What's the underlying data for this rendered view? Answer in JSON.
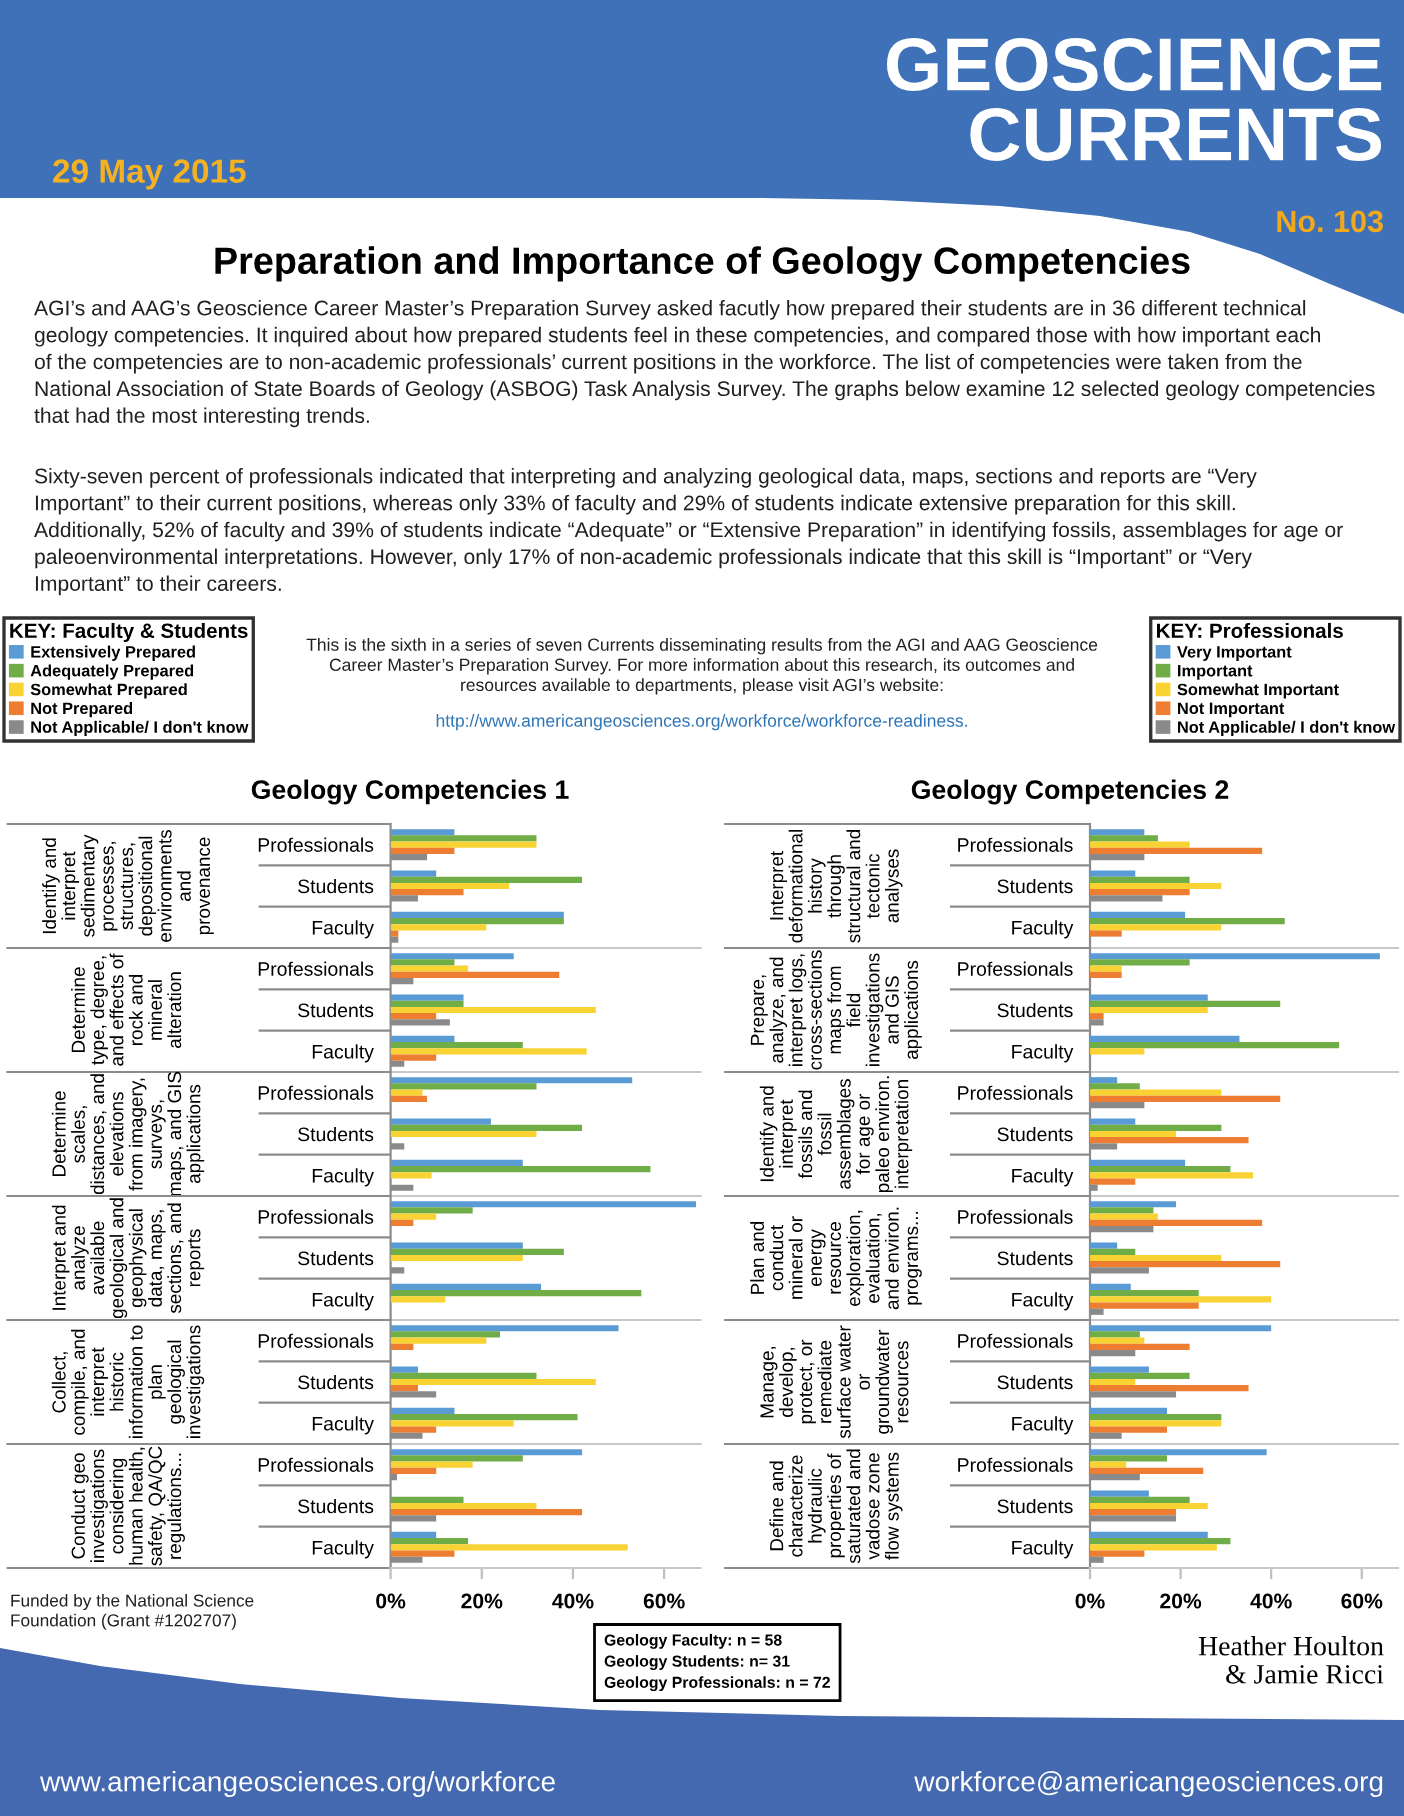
{
  "chart_data": [
    {
      "type": "other",
      "title": "Preparation and Importance of Geology Competencies",
      "annotations": [
        "GEOSCIENCE\nCURRENTS",
        "29 May 2015",
        "No. 103",
        "AGI’s and AAG’s Geoscience Career Master’s Preparation Survey asked facutly how prepared their students are in 36 different technical\ngeology competencies. It inquired about how prepared students feel in these competencies, and compared those with how important each\nof the competencies are to non-academic professionals’ current positions in the workforce. The list of competencies were taken from the\nNational Association of State Boards of Geology (ASBOG) Task Analysis Survey. The graphs below examine 12 selected geology competencies\nthat had the most interesting trends.",
        "Sixty-seven percent of professionals indicated that interpreting and analyzing geological data, maps, sections and reports are “Very\nImportant” to their current positions, whereas only 33% of faculty and 29% of students indicate extensive preparation for this skill.\nAdditionally, 52% of faculty and 39% of students indicate “Adequate” or “Extensive Preparation” in identifying fossils, assemblages for age or\npaleoenvironmental interpretations. However, only 17% of non-academic professionals indicate that this skill is “Important” or “Very\nImportant” to their careers.",
        "This is the sixth in a series of seven Currents disseminating results from the AGI and AAG Geoscience\nCareer Master’s Preparation Survey. For more information about this research, its outcomes and\nresources available to departments, please visit AGI’s website:",
        "http://www.americangeosciences.org/workforce/workforce-readiness.",
        "Funded by the National Science\nFoundation (Grant #1202707)",
        "Geology Faculty: n = 58\nGeology Students: n= 31\nGeology Professionals: n = 72",
        "Heather Houlton\n& Jamie Ricci",
        "www.americangeosciences.org/workforce",
        "workforce@americangeosciences.org"
      ]
    },
    {
      "type": "bar",
      "orientation": "horizontal",
      "title": "Geology Competencies 1",
      "ylabel": "Identify and\ninterpret\nsedimentary\nprocesses,\nstructures,\ndepositional\nenvironments\nand\nprovenance",
      "categories": [
        "Professionals",
        "Students",
        "Faculty"
      ],
      "series": [
        {
          "name": "Extensively Prepared",
          "color": "#5b9bd5",
          "values": [
            null,
            10,
            38
          ]
        },
        {
          "name": "Adequately Prepared",
          "color": "#70ad47",
          "values": [
            null,
            42,
            38
          ]
        },
        {
          "name": "Somewhat Prepared",
          "color": "#f9d233",
          "values": [
            null,
            26,
            21
          ]
        },
        {
          "name": "Not Prepared",
          "color": "#ed7d31",
          "values": [
            null,
            16,
            1.7
          ]
        },
        {
          "name": "Not Applicable/ I don't know",
          "color": "#8a8a8a",
          "values": [
            null,
            6,
            1.7
          ]
        },
        {
          "color": "#5b9bd5",
          "values": [
            14,
            null,
            null
          ]
        },
        {
          "color": "#70ad47",
          "values": [
            32,
            null,
            null
          ]
        },
        {
          "color": "#f9d233",
          "values": [
            32,
            null,
            null
          ]
        },
        {
          "color": "#ed7d31",
          "values": [
            14,
            null,
            null
          ]
        },
        {
          "color": "#8a8a8a",
          "values": [
            8,
            null,
            null
          ]
        }
      ],
      "xlim": [
        0,
        68
      ],
      "tick_labels": "y",
      "legend": "top left",
      "legend_title": "KEY: Faculty & Students"
    },
    {
      "type": "bar",
      "orientation": "horizontal",
      "ylabel": "Determine\ntype, degree,\nand effects of\nrock and\nmineral\nalteration",
      "categories": [
        "Professionals",
        "Students",
        "Faculty"
      ],
      "series": [
        {
          "color": "#5b9bd5",
          "values": [
            null,
            16,
            14
          ]
        },
        {
          "color": "#70ad47",
          "values": [
            null,
            16,
            29
          ]
        },
        {
          "color": "#f9d233",
          "values": [
            null,
            45,
            43
          ]
        },
        {
          "color": "#ed7d31",
          "values": [
            null,
            10,
            10
          ]
        },
        {
          "color": "#8a8a8a",
          "values": [
            null,
            13,
            3
          ]
        },
        {
          "color": "#5b9bd5",
          "values": [
            27,
            null,
            null
          ]
        },
        {
          "color": "#70ad47",
          "values": [
            14,
            null,
            null
          ]
        },
        {
          "color": "#f9d233",
          "values": [
            17,
            null,
            null
          ]
        },
        {
          "color": "#ed7d31",
          "values": [
            37,
            null,
            null
          ]
        },
        {
          "color": "#8a8a8a",
          "values": [
            5,
            null,
            null
          ]
        }
      ],
      "xlim": [
        0,
        68
      ],
      "tick_labels": "y"
    },
    {
      "type": "bar",
      "orientation": "horizontal",
      "ylabel": "Determine\nscales,\ndistances, and\nelevations\nfrom imagery,\nsurveys,\nmaps, and GIS\napplications",
      "categories": [
        "Professionals",
        "Students",
        "Faculty"
      ],
      "series": [
        {
          "color": "#5b9bd5",
          "values": [
            null,
            22,
            29
          ]
        },
        {
          "color": "#70ad47",
          "values": [
            null,
            42,
            57
          ]
        },
        {
          "color": "#f9d233",
          "values": [
            null,
            32,
            9
          ]
        },
        {
          "color": "#ed7d31",
          "values": [
            null,
            0,
            0
          ]
        },
        {
          "color": "#8a8a8a",
          "values": [
            null,
            3,
            5
          ]
        },
        {
          "color": "#5b9bd5",
          "values": [
            53,
            null,
            null
          ]
        },
        {
          "color": "#70ad47",
          "values": [
            32,
            null,
            null
          ]
        },
        {
          "color": "#f9d233",
          "values": [
            7,
            null,
            null
          ]
        },
        {
          "color": "#ed7d31",
          "values": [
            8,
            null,
            null
          ]
        },
        {
          "color": "#8a8a8a",
          "values": [
            0,
            null,
            null
          ]
        }
      ],
      "xlim": [
        0,
        68
      ],
      "tick_labels": "y"
    },
    {
      "type": "bar",
      "orientation": "horizontal",
      "ylabel": "Interpret and\nanalyze\navailable\ngeological and\ngeophysical\ndata, maps,\nsections, and\nreports",
      "categories": [
        "Professionals",
        "Students",
        "Faculty"
      ],
      "series": [
        {
          "color": "#5b9bd5",
          "values": [
            null,
            29,
            33
          ]
        },
        {
          "color": "#70ad47",
          "values": [
            null,
            38,
            55
          ]
        },
        {
          "color": "#f9d233",
          "values": [
            null,
            29,
            12
          ]
        },
        {
          "color": "#ed7d31",
          "values": [
            null,
            0,
            0
          ]
        },
        {
          "color": "#8a8a8a",
          "values": [
            null,
            3,
            0
          ]
        },
        {
          "color": "#5b9bd5",
          "values": [
            67,
            null,
            null
          ]
        },
        {
          "color": "#70ad47",
          "values": [
            18,
            null,
            null
          ]
        },
        {
          "color": "#f9d233",
          "values": [
            10,
            null,
            null
          ]
        },
        {
          "color": "#ed7d31",
          "values": [
            5,
            null,
            null
          ]
        },
        {
          "color": "#8a8a8a",
          "values": [
            0,
            null,
            null
          ]
        }
      ],
      "xlim": [
        0,
        68
      ],
      "tick_labels": "y"
    },
    {
      "type": "bar",
      "orientation": "horizontal",
      "ylabel": "Collect,\ncompile, and\ninterpret\nhistoric\ninformation to\nplan\ngeological\ninvestigations",
      "categories": [
        "Professionals",
        "Students",
        "Faculty"
      ],
      "series": [
        {
          "color": "#5b9bd5",
          "values": [
            null,
            6,
            14
          ]
        },
        {
          "color": "#70ad47",
          "values": [
            null,
            32,
            41
          ]
        },
        {
          "color": "#f9d233",
          "values": [
            null,
            45,
            27
          ]
        },
        {
          "color": "#ed7d31",
          "values": [
            null,
            6,
            10
          ]
        },
        {
          "color": "#8a8a8a",
          "values": [
            null,
            10,
            7
          ]
        },
        {
          "color": "#5b9bd5",
          "values": [
            50,
            null,
            null
          ]
        },
        {
          "color": "#70ad47",
          "values": [
            24,
            null,
            null
          ]
        },
        {
          "color": "#f9d233",
          "values": [
            21,
            null,
            null
          ]
        },
        {
          "color": "#ed7d31",
          "values": [
            5,
            null,
            null
          ]
        },
        {
          "color": "#8a8a8a",
          "values": [
            0,
            null,
            null
          ]
        }
      ],
      "xlim": [
        0,
        68
      ],
      "tick_labels": "y"
    },
    {
      "type": "bar",
      "orientation": "horizontal",
      "ylabel": "Conduct geo\ninvestigations\nconsidering\nhuman health,\nsafety, QA/QC\nregulations...",
      "categories": [
        "Professionals",
        "Students",
        "Faculty"
      ],
      "series": [
        {
          "color": "#5b9bd5",
          "values": [
            null,
            0,
            10
          ]
        },
        {
          "color": "#70ad47",
          "values": [
            null,
            16,
            17
          ]
        },
        {
          "color": "#f9d233",
          "values": [
            null,
            32,
            52
          ]
        },
        {
          "color": "#ed7d31",
          "values": [
            null,
            42,
            14
          ]
        },
        {
          "color": "#8a8a8a",
          "values": [
            null,
            10,
            7
          ]
        },
        {
          "color": "#5b9bd5",
          "values": [
            42,
            null,
            null
          ]
        },
        {
          "color": "#70ad47",
          "values": [
            29,
            null,
            null
          ]
        },
        {
          "color": "#f9d233",
          "values": [
            18,
            null,
            null
          ]
        },
        {
          "color": "#ed7d31",
          "values": [
            10,
            null,
            null
          ]
        },
        {
          "color": "#8a8a8a",
          "values": [
            1.4,
            null,
            null
          ]
        }
      ],
      "xlim": [
        0,
        68
      ],
      "xticks": [
        {
          "value": 0,
          "label": "0%"
        },
        {
          "value": 20,
          "label": "20%"
        },
        {
          "value": 40,
          "label": "40%"
        },
        {
          "value": 60,
          "label": "60%"
        }
      ]
    },
    {
      "type": "bar",
      "orientation": "horizontal",
      "title": "Geology Competencies 2",
      "ylabel": "Interpret\ndeformational\nhistory\nthrough\nstructural and\ntectonic\nanalyses",
      "categories": [
        "Professionals",
        "Students",
        "Faculty"
      ],
      "series": [
        {
          "color": "#5b9bd5",
          "values": [
            null,
            10,
            21
          ]
        },
        {
          "color": "#70ad47",
          "values": [
            null,
            22,
            43
          ]
        },
        {
          "color": "#f9d233",
          "values": [
            null,
            29,
            29
          ]
        },
        {
          "color": "#ed7d31",
          "values": [
            null,
            22,
            7
          ]
        },
        {
          "color": "#8a8a8a",
          "values": [
            null,
            16,
            0
          ]
        },
        {
          "name": "Very Important",
          "color": "#5b9bd5",
          "values": [
            12,
            null,
            null
          ]
        },
        {
          "name": "Important",
          "color": "#70ad47",
          "values": [
            15,
            null,
            null
          ]
        },
        {
          "name": "Somewhat Important",
          "color": "#f9d233",
          "values": [
            22,
            null,
            null
          ]
        },
        {
          "name": "Not Important",
          "color": "#ed7d31",
          "values": [
            38,
            null,
            null
          ]
        },
        {
          "name": "Not Applicable/ I don't know",
          "color": "#8a8a8a",
          "values": [
            12,
            null,
            null
          ]
        }
      ],
      "xlim": [
        0,
        68
      ],
      "tick_labels": "y",
      "legend": "top right",
      "legend_title": "KEY: Professionals"
    },
    {
      "type": "bar",
      "orientation": "horizontal",
      "ylabel": "Prepare,\nanalyze, and\ninterpret logs,\ncross-sections\nmaps from\nfield\ninvestigations\nand GIS\napplications",
      "categories": [
        "Professionals",
        "Students",
        "Faculty"
      ],
      "series": [
        {
          "color": "#5b9bd5",
          "values": [
            null,
            26,
            33
          ]
        },
        {
          "color": "#70ad47",
          "values": [
            null,
            42,
            55
          ]
        },
        {
          "color": "#f9d233",
          "values": [
            null,
            26,
            12
          ]
        },
        {
          "color": "#ed7d31",
          "values": [
            null,
            3,
            0
          ]
        },
        {
          "color": "#8a8a8a",
          "values": [
            null,
            3,
            0
          ]
        },
        {
          "color": "#5b9bd5",
          "values": [
            64,
            null,
            null
          ]
        },
        {
          "color": "#70ad47",
          "values": [
            22,
            null,
            null
          ]
        },
        {
          "color": "#f9d233",
          "values": [
            7,
            null,
            null
          ]
        },
        {
          "color": "#ed7d31",
          "values": [
            7,
            null,
            null
          ]
        },
        {
          "color": "#8a8a8a",
          "values": [
            0,
            null,
            null
          ]
        }
      ],
      "xlim": [
        0,
        68
      ],
      "tick_labels": "y"
    },
    {
      "type": "bar",
      "orientation": "horizontal",
      "ylabel": "Identify and\ninterpret\nfossils and\nfossil\nassemblages\nfor age or\npaleo environ.\ninterpretation",
      "categories": [
        "Professionals",
        "Students",
        "Faculty"
      ],
      "series": [
        {
          "color": "#5b9bd5",
          "values": [
            null,
            10,
            21
          ]
        },
        {
          "color": "#70ad47",
          "values": [
            null,
            29,
            31
          ]
        },
        {
          "color": "#f9d233",
          "values": [
            null,
            19,
            36
          ]
        },
        {
          "color": "#ed7d31",
          "values": [
            null,
            35,
            10
          ]
        },
        {
          "color": "#8a8a8a",
          "values": [
            null,
            6,
            1.7
          ]
        },
        {
          "color": "#5b9bd5",
          "values": [
            6,
            null,
            null
          ]
        },
        {
          "color": "#70ad47",
          "values": [
            11,
            null,
            null
          ]
        },
        {
          "color": "#f9d233",
          "values": [
            29,
            null,
            null
          ]
        },
        {
          "color": "#ed7d31",
          "values": [
            42,
            null,
            null
          ]
        },
        {
          "color": "#8a8a8a",
          "values": [
            12,
            null,
            null
          ]
        }
      ],
      "xlim": [
        0,
        68
      ],
      "tick_labels": "y"
    },
    {
      "type": "bar",
      "orientation": "horizontal",
      "ylabel": "Plan and\nconduct\nmineral or\nenergy\nresource\nexploration,\nevaluation,\nand environ.\nprograms...",
      "categories": [
        "Professionals",
        "Students",
        "Faculty"
      ],
      "series": [
        {
          "color": "#5b9bd5",
          "values": [
            null,
            6,
            9
          ]
        },
        {
          "color": "#70ad47",
          "values": [
            null,
            10,
            24
          ]
        },
        {
          "color": "#f9d233",
          "values": [
            null,
            29,
            40
          ]
        },
        {
          "color": "#ed7d31",
          "values": [
            null,
            42,
            24
          ]
        },
        {
          "color": "#8a8a8a",
          "values": [
            null,
            13,
            3
          ]
        },
        {
          "color": "#5b9bd5",
          "values": [
            19,
            null,
            null
          ]
        },
        {
          "color": "#70ad47",
          "values": [
            14,
            null,
            null
          ]
        },
        {
          "color": "#f9d233",
          "values": [
            15,
            null,
            null
          ]
        },
        {
          "color": "#ed7d31",
          "values": [
            38,
            null,
            null
          ]
        },
        {
          "color": "#8a8a8a",
          "values": [
            14,
            null,
            null
          ]
        }
      ],
      "xlim": [
        0,
        68
      ],
      "tick_labels": "y"
    },
    {
      "type": "bar",
      "orientation": "horizontal",
      "ylabel": "Manage,\ndevelop,\nprotect, or\nremediate\nsurface water\nor\ngroundwater\nresources",
      "categories": [
        "Professionals",
        "Students",
        "Faculty"
      ],
      "series": [
        {
          "color": "#5b9bd5",
          "values": [
            null,
            13,
            17
          ]
        },
        {
          "color": "#70ad47",
          "values": [
            null,
            22,
            29
          ]
        },
        {
          "color": "#f9d233",
          "values": [
            null,
            10,
            29
          ]
        },
        {
          "color": "#ed7d31",
          "values": [
            null,
            35,
            17
          ]
        },
        {
          "color": "#8a8a8a",
          "values": [
            null,
            19,
            7
          ]
        },
        {
          "color": "#5b9bd5",
          "values": [
            40,
            null,
            null
          ]
        },
        {
          "color": "#70ad47",
          "values": [
            11,
            null,
            null
          ]
        },
        {
          "color": "#f9d233",
          "values": [
            12,
            null,
            null
          ]
        },
        {
          "color": "#ed7d31",
          "values": [
            22,
            null,
            null
          ]
        },
        {
          "color": "#8a8a8a",
          "values": [
            10,
            null,
            null
          ]
        }
      ],
      "xlim": [
        0,
        68
      ],
      "tick_labels": "y"
    },
    {
      "type": "bar",
      "orientation": "horizontal",
      "ylabel": "Define and\ncharacterize\nhydraulic\nproperties of\nsaturated and\nvadose zone\nflow systems",
      "categories": [
        "Professionals",
        "Students",
        "Faculty"
      ],
      "series": [
        {
          "color": "#5b9bd5",
          "values": [
            null,
            13,
            26
          ]
        },
        {
          "color": "#70ad47",
          "values": [
            null,
            22,
            31
          ]
        },
        {
          "color": "#f9d233",
          "values": [
            null,
            26,
            28
          ]
        },
        {
          "color": "#ed7d31",
          "values": [
            null,
            19,
            12
          ]
        },
        {
          "color": "#8a8a8a",
          "values": [
            null,
            19,
            3
          ]
        },
        {
          "color": "#5b9bd5",
          "values": [
            39,
            null,
            null
          ]
        },
        {
          "color": "#70ad47",
          "values": [
            17,
            null,
            null
          ]
        },
        {
          "color": "#f9d233",
          "values": [
            8,
            null,
            null
          ]
        },
        {
          "color": "#ed7d31",
          "values": [
            25,
            null,
            null
          ]
        },
        {
          "color": "#8a8a8a",
          "values": [
            11,
            null,
            null
          ]
        }
      ],
      "xlim": [
        0,
        68
      ],
      "xticks": [
        {
          "value": 0,
          "label": "0%"
        },
        {
          "value": 20,
          "label": "20%"
        },
        {
          "value": 40,
          "label": "40%"
        },
        {
          "value": 60,
          "label": "60%"
        }
      ]
    }
  ]
}
